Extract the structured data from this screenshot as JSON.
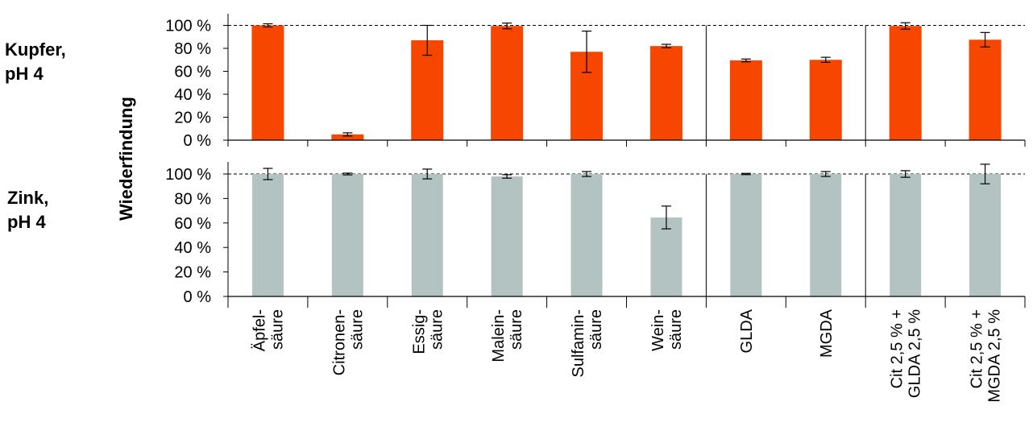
{
  "chart_data": [
    {
      "type": "bar",
      "panel_label": [
        "Kupfer,",
        "pH 4"
      ],
      "ylabel": "Wiederfindung",
      "ylim": [
        0,
        100
      ],
      "yticks": [
        "0 %",
        "20 %",
        "40 %",
        "60 %",
        "80 %",
        "100 %"
      ],
      "reference_line": 100,
      "color": "#f64600",
      "categories": [
        "Äpfel-säure",
        "Citronen-säure",
        "Essig-säure",
        "Malein-säure",
        "Sulfamin-säure",
        "Wein-säure",
        "GLDA",
        "MGDA",
        "Cit 2,5 % + GLDA 2,5 %",
        "Cit 2,5 % + MGDA 2,5 %"
      ],
      "values": [
        100,
        5,
        87,
        99.5,
        77,
        82,
        69.5,
        70,
        99.5,
        87.5
      ],
      "errors": [
        1.4,
        1.4,
        13,
        2.5,
        18,
        1.5,
        1.2,
        2.2,
        2.8,
        6.3
      ],
      "group_separators_after": [
        6,
        8
      ]
    },
    {
      "type": "bar",
      "panel_label": [
        "Zink,",
        "pH 4"
      ],
      "ylabel": "Wiederfindung",
      "ylim": [
        0,
        100
      ],
      "yticks": [
        "0 %",
        "20 %",
        "40 %",
        "60 %",
        "80 %",
        "100 %"
      ],
      "reference_line": 100,
      "color": "#b2c3c2",
      "categories": [
        "Äpfel-säure",
        "Citronen-säure",
        "Essig-säure",
        "Malein-säure",
        "Sulfamin-säure",
        "Wein-säure",
        "GLDA",
        "MGDA",
        "Cit 2,5 % + GLDA 2,5 %",
        "Cit 2,5 % + MGDA 2,5 %"
      ],
      "values": [
        100,
        100,
        100,
        98,
        100,
        64.5,
        100,
        100,
        100,
        100
      ],
      "errors": [
        4.6,
        0.7,
        4,
        1.4,
        2,
        9.3,
        0.5,
        2,
        2.7,
        8
      ],
      "group_separators_after": [
        6,
        8
      ]
    }
  ],
  "x_labels": [
    [
      "Äpfel-",
      "säure"
    ],
    [
      "Citronen-",
      "säure"
    ],
    [
      "Essig-",
      "säure"
    ],
    [
      "Malein-",
      "säure"
    ],
    [
      "Sulfamin-",
      "säure"
    ],
    [
      "Wein-",
      "säure"
    ],
    [
      "GLDA"
    ],
    [
      "MGDA"
    ],
    [
      "Cit 2,5 % +",
      "GLDA 2,5 %"
    ],
    [
      "Cit 2,5 % +",
      "MGDA 2,5 %"
    ]
  ]
}
